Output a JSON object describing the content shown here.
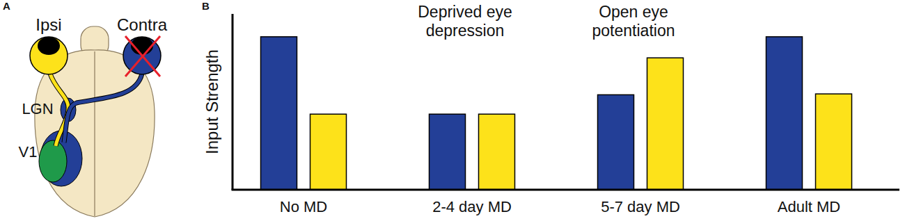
{
  "diagram": {
    "panel_label": "A",
    "labels": [
      "LGN",
      "V1"
    ]
  },
  "chart_data": {
    "type": "bar",
    "panel_label": "B",
    "y_label": "Input Strength",
    "categories": [
      "No MD",
      "2-4 day MD",
      "5-7 day MD",
      "Adult MD"
    ],
    "series": [
      {
        "name": "Contra",
        "color": "#233f97",
        "values": [
          87,
          43,
          54,
          87
        ]
      },
      {
        "name": "Ipsi",
        "color": "#fde21a",
        "values": [
          43,
          43,
          75,
          54.5
        ]
      }
    ],
    "annotations": [
      "Deprived eye depression",
      "Open eye potentiation"
    ],
    "ylim": [
      0,
      100
    ],
    "tick_labels": false,
    "grid": false
  }
}
